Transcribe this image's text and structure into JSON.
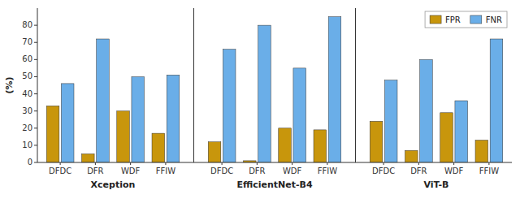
{
  "chart_data": {
    "type": "bar",
    "y_label": "(%)",
    "groups": [
      "Xception",
      "EfficientNet-B4",
      "ViT-B"
    ],
    "categories": [
      "DFDC",
      "DFR",
      "WDF",
      "FFIW",
      "DFDC",
      "DFR",
      "WDF",
      "FFIW",
      "DFDC",
      "DFR",
      "WDF",
      "FFIW"
    ],
    "series": [
      {
        "name": "FPR",
        "color": "#C8960C",
        "values": [
          33,
          5,
          30,
          17,
          12,
          1,
          20,
          19,
          24,
          7,
          29,
          13
        ]
      },
      {
        "name": "FNR",
        "color": "#6aaee8",
        "values": [
          46,
          72,
          50,
          51,
          66,
          80,
          55,
          85,
          48,
          60,
          36,
          72
        ]
      }
    ],
    "ylim": [
      0,
      90
    ],
    "yticks": [
      0,
      10,
      20,
      30,
      40,
      50,
      60,
      70,
      80
    ],
    "grid": false,
    "legend": "upper-right"
  }
}
